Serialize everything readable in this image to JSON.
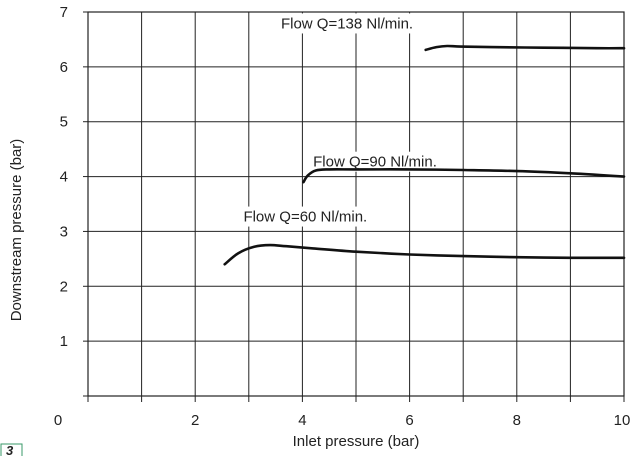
{
  "chart_data": {
    "type": "line",
    "title": "",
    "xlabel": "Inlet pressure (bar)",
    "ylabel": "Downstream pressure (bar)",
    "xlim": [
      0,
      10
    ],
    "ylim": [
      0,
      7
    ],
    "x_ticks": [
      0,
      1,
      2,
      3,
      4,
      5,
      6,
      7,
      8,
      9,
      10
    ],
    "x_tick_labels": [
      "0",
      "",
      "2",
      "",
      "4",
      "",
      "6",
      "",
      "8",
      "",
      "10"
    ],
    "y_ticks": [
      0,
      1,
      2,
      3,
      4,
      5,
      6,
      7
    ],
    "y_tick_labels": [
      "",
      "1",
      "2",
      "3",
      "4",
      "5",
      "6",
      "7"
    ],
    "grid": true,
    "series": [
      {
        "name": "Flow Q=60 Nl/min.",
        "x": [
          2.55,
          2.8,
          3.1,
          3.4,
          3.7,
          4.2,
          5.0,
          6.0,
          7.0,
          8.0,
          9.0,
          10.0
        ],
        "y": [
          2.4,
          2.6,
          2.72,
          2.75,
          2.73,
          2.69,
          2.63,
          2.58,
          2.55,
          2.53,
          2.52,
          2.52
        ]
      },
      {
        "name": "Flow Q=90 Nl/min.",
        "x": [
          4.02,
          4.1,
          4.25,
          4.5,
          5.0,
          6.0,
          7.0,
          8.0,
          9.0,
          10.0
        ],
        "y": [
          3.9,
          4.02,
          4.11,
          4.13,
          4.13,
          4.13,
          4.12,
          4.1,
          4.06,
          4.0
        ],
        "label_at": [
          4.2,
          4.18
        ]
      },
      {
        "name": "Flow Q=138 Nl/min.",
        "x": [
          6.3,
          6.5,
          6.7,
          6.95,
          7.5,
          8.5,
          9.5,
          10.0
        ],
        "y": [
          6.31,
          6.36,
          6.38,
          6.37,
          6.36,
          6.35,
          6.34,
          6.34
        ],
        "label_at": [
          3.6,
          6.7
        ]
      }
    ],
    "series_label_at": [
      [
        2.9,
        3.18
      ],
      [
        4.2,
        4.18
      ],
      [
        3.6,
        6.7
      ]
    ]
  },
  "figure_number": "3"
}
